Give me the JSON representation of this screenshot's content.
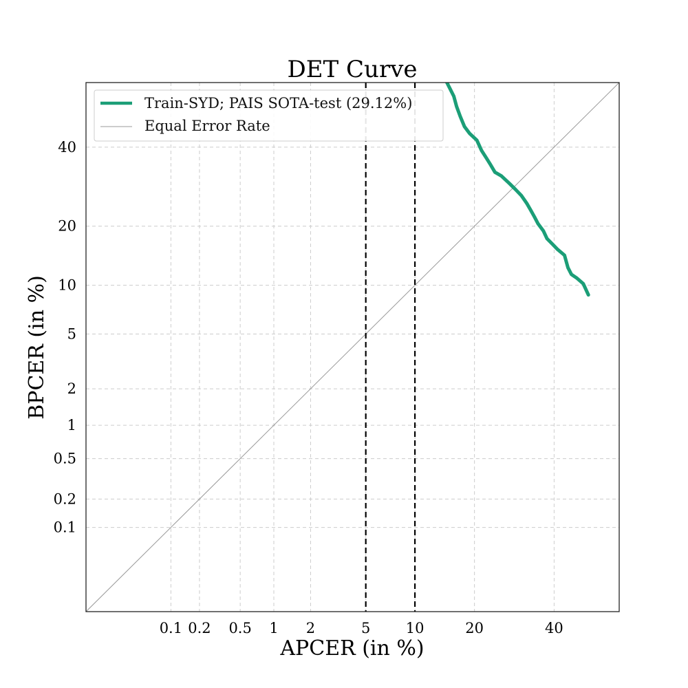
{
  "chart_data": {
    "type": "line",
    "title": "DET Curve",
    "xlabel": "APCER (in %)",
    "ylabel": "BPCER (in %)",
    "scale": "probit",
    "xlim": [
      0.01,
      59
    ],
    "ylim": [
      0.01,
      59
    ],
    "x_ticks": [
      0.1,
      0.2,
      0.5,
      1,
      2,
      5,
      10,
      20,
      40
    ],
    "x_tick_labels": [
      "0.1",
      "0.2",
      "0.5",
      "1",
      "2",
      "5",
      "10",
      "20",
      "40"
    ],
    "y_ticks": [
      0.1,
      0.2,
      0.5,
      1,
      2,
      5,
      10,
      20,
      40
    ],
    "y_tick_labels": [
      "0.1",
      "0.2",
      "0.5",
      "1",
      "2",
      "5",
      "10",
      "20",
      "40"
    ],
    "grid": true,
    "legend_location": "top-left",
    "vertical_lines": [
      5,
      10
    ],
    "series": [
      {
        "name": "Train-SYD; PAIS SOTA-test (29.12%)",
        "color": "#1b9e77",
        "x": [
          14.8,
          16.0,
          16.5,
          17.2,
          18.0,
          19.0,
          20.5,
          21.5,
          22.5,
          23.5,
          24.5,
          26.0,
          28.0,
          29.5,
          31.0,
          32.5,
          33.5,
          34.5,
          35.5,
          37.0,
          38.0,
          39.5,
          41.0,
          43.0,
          44.0,
          45.0,
          46.5,
          48.5,
          50.0
        ],
        "y": [
          59,
          55,
          52,
          49,
          46,
          44,
          42,
          39,
          37,
          35,
          33,
          32,
          30,
          28.5,
          27,
          25,
          23.5,
          22,
          20.5,
          19,
          17.5,
          16.5,
          15.5,
          14.5,
          12.5,
          11.5,
          11,
          10.2,
          8.8
        ]
      },
      {
        "name": "Equal Error Rate",
        "color": "#999999",
        "x": [
          0.01,
          59
        ],
        "y": [
          0.01,
          59
        ]
      }
    ]
  }
}
